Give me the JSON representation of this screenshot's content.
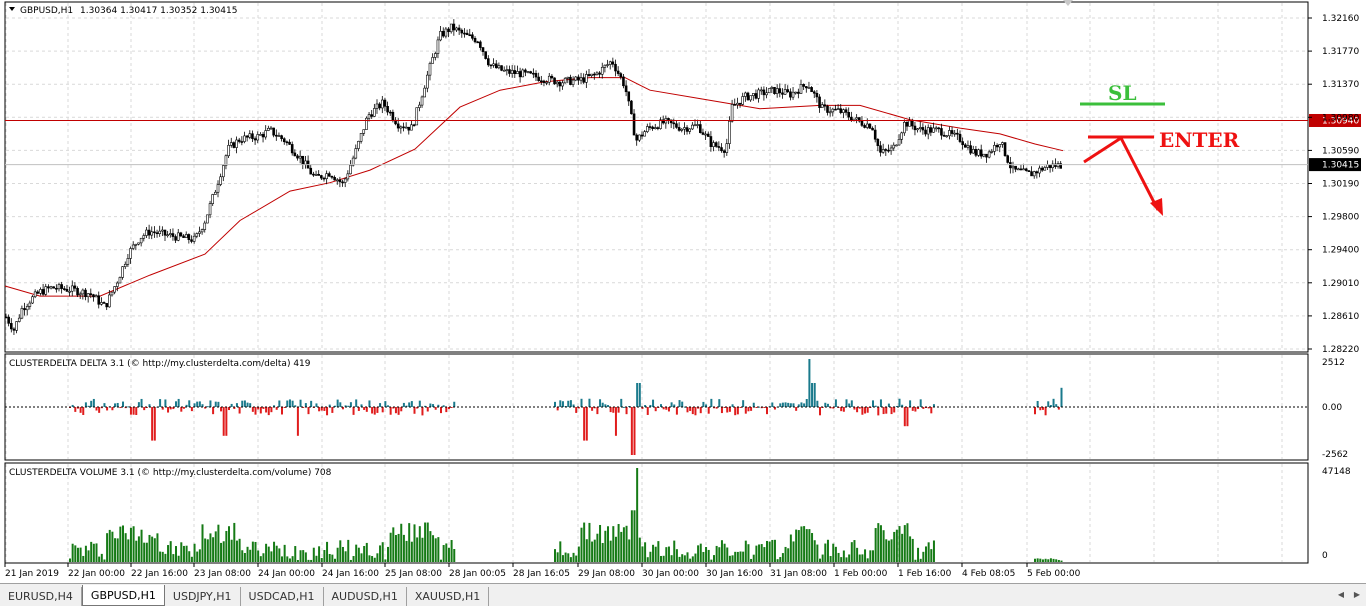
{
  "main": {
    "symbol": "GBPUSD,H1",
    "ohlc": "1.30364 1.30417 1.30352 1.30415",
    "price_axis": [
      "1.32160",
      "1.31770",
      "1.31370",
      "1.30980",
      "1.30590",
      "1.30190",
      "1.29800",
      "1.29400",
      "1.29010",
      "1.28610",
      "1.28220"
    ],
    "hline_price": 1.3094,
    "hline_label": "1.30940",
    "bid_price": 1.30415,
    "bid_label": "1.30415",
    "ylim": [
      1.2822,
      1.3216
    ],
    "sl_label": "SL",
    "enter_label": "ENTER",
    "colors": {
      "line": "#c00000",
      "sl": "#3bbf3b",
      "enter": "#ee1111",
      "candle": "#000000",
      "ma": "#c00000"
    }
  },
  "delta": {
    "title": "CLUSTERDELTA DELTA 3.1 (© http://my.clusterdelta.com/delta) 419",
    "axis": [
      "2512",
      "0.00",
      "-2562"
    ],
    "colors": {
      "pos": "#1a7a8c",
      "neg": "#e01c1c"
    }
  },
  "volume": {
    "title": "CLUSTERDELTA VOLUME 3.1 (© http://my.clusterdelta.com/volume) 708",
    "axis": [
      "47148",
      "0"
    ],
    "color": "#157a15"
  },
  "time_axis": [
    "21 Jan 2019",
    "22 Jan 00:00",
    "22 Jan 16:00",
    "23 Jan 08:00",
    "24 Jan 00:00",
    "24 Jan 16:00",
    "25 Jan 08:00",
    "28 Jan 00:05",
    "28 Jan 16:05",
    "29 Jan 08:00",
    "30 Jan 00:00",
    "30 Jan 16:00",
    "31 Jan 08:00",
    "1 Feb 00:00",
    "1 Feb 16:00",
    "4 Feb 08:05",
    "5 Feb 00:00"
  ],
  "tabs": [
    "EURUSD,H4",
    "GBPUSD,H1",
    "USDJPY,H1",
    "USDCAD,H1",
    "AUDUSD,H1",
    "XAUUSD,H1"
  ],
  "active_tab": 1,
  "chart_data": {
    "type": "line",
    "title": "GBPUSD,H1",
    "xlabel": "",
    "ylabel": "",
    "x": [
      "21 Jan 2019",
      "22 Jan 00:00",
      "22 Jan 16:00",
      "23 Jan 08:00",
      "24 Jan 00:00",
      "24 Jan 16:00",
      "25 Jan 08:00",
      "28 Jan 00:05",
      "28 Jan 16:05",
      "29 Jan 08:00",
      "30 Jan 00:00",
      "30 Jan 16:00",
      "31 Jan 08:00",
      "1 Feb 00:00",
      "1 Feb 16:00",
      "4 Feb 08:05",
      "5 Feb 00:00"
    ],
    "series": [
      {
        "values": [
          1.2875,
          1.289,
          1.296,
          1.307,
          1.305,
          1.302,
          1.311,
          1.32,
          1.3155,
          1.3165,
          1.3075,
          1.3085,
          1.3125,
          1.3095,
          1.308,
          1.306,
          1.304
        ]
      }
    ],
    "ylim": [
      1.2822,
      1.3216
    ],
    "grid": true
  }
}
